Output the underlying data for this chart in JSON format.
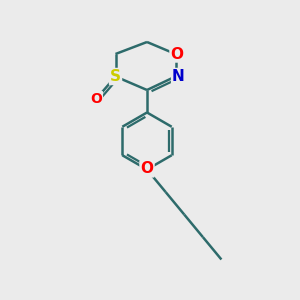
{
  "bg_color": "#ebebeb",
  "bond_color": "#2d6b6b",
  "bond_width": 1.8,
  "atom_colors": {
    "O": "#ff0000",
    "N": "#0000cc",
    "S": "#cccc00"
  },
  "font_size_atom": 11
}
